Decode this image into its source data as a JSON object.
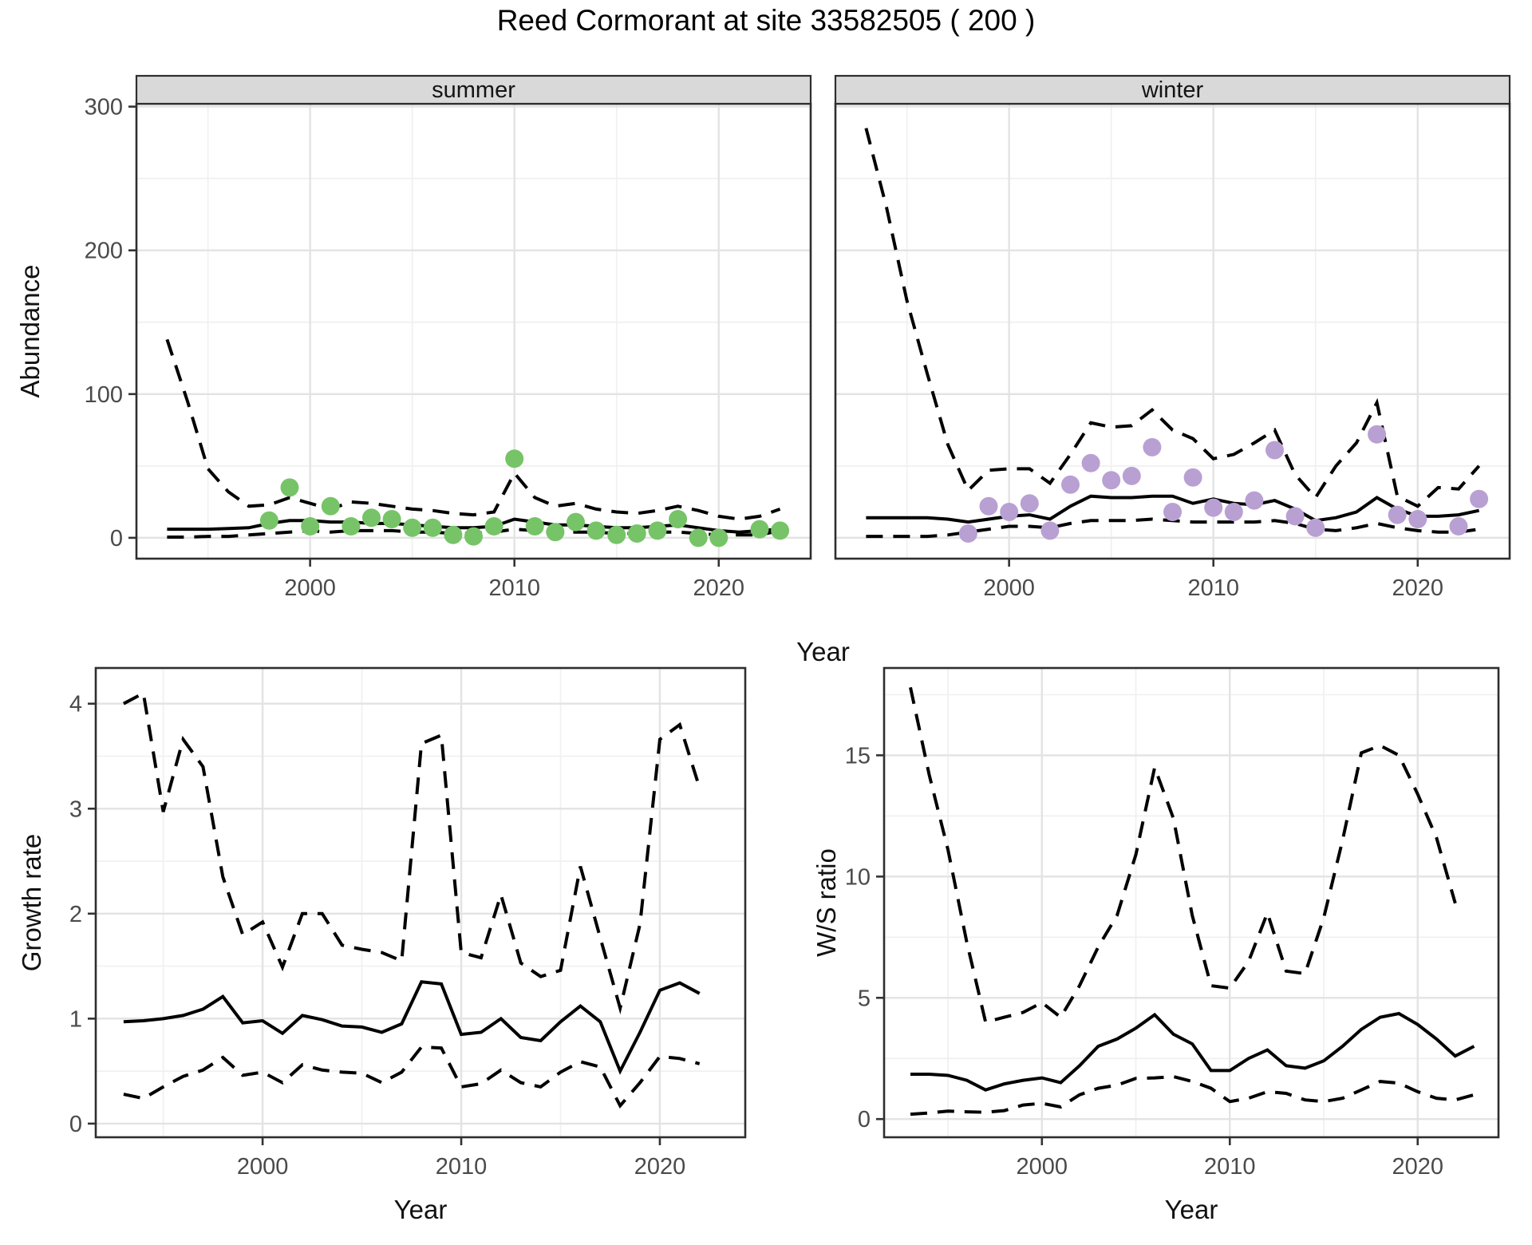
{
  "title": "Reed Cormorant at site 33582505 ( 200 )",
  "colors": {
    "summer_point": "#76c467",
    "winter_point": "#b9a0d3",
    "line": "#000000",
    "strip_bg": "#d9d9d9",
    "strip_text": "#141414",
    "grid_major": "#e3e3e3",
    "grid_minor": "#f0f0f0",
    "panel_border": "#2e2e2e",
    "axis_text": "#4a4a4a"
  },
  "chart_data": [
    {
      "id": "abundance_summer",
      "type": "line",
      "facet_label": "summer",
      "xlabel": "Year",
      "ylabel": "Abundance",
      "xlim": [
        1991.5,
        2024.5
      ],
      "ylim": [
        -14.5,
        302
      ],
      "xticks": [
        2000,
        2010,
        2020
      ],
      "xminor": [
        1995,
        2005,
        2015
      ],
      "yticks": [
        0,
        100,
        200,
        300
      ],
      "yminor": [
        50,
        150,
        250
      ],
      "grid": true,
      "x": [
        1993,
        1994,
        1995,
        1996,
        1997,
        1998,
        1999,
        2000,
        2001,
        2002,
        2003,
        2004,
        2005,
        2006,
        2007,
        2008,
        2009,
        2010,
        2011,
        2012,
        2013,
        2014,
        2015,
        2016,
        2017,
        2018,
        2019,
        2020,
        2021,
        2022,
        2023
      ],
      "series": [
        {
          "name": "upper_ci",
          "style": "dashed",
          "values": [
            138,
            95,
            48,
            32,
            22,
            23,
            28,
            24,
            20,
            25,
            24,
            22,
            20,
            19,
            17,
            16,
            18,
            45,
            28,
            22,
            24,
            20,
            18,
            17,
            19,
            22,
            19,
            15,
            13,
            15,
            20
          ]
        },
        {
          "name": "fit",
          "style": "solid",
          "values": [
            6,
            6,
            6,
            6.5,
            7,
            10,
            12,
            12,
            11,
            11,
            10,
            10,
            9,
            8,
            7,
            7,
            8,
            13,
            11,
            9,
            9,
            8,
            7,
            7,
            8,
            9,
            7,
            5,
            4,
            5,
            6
          ]
        },
        {
          "name": "lower_ci",
          "style": "dashed",
          "values": [
            0.5,
            0.5,
            1,
            1,
            2,
            3,
            4,
            5,
            4,
            5,
            5,
            5,
            4,
            4,
            3,
            3,
            4,
            6,
            5,
            4,
            4,
            4,
            3,
            3,
            4,
            4,
            3,
            2,
            2,
            2,
            5
          ]
        }
      ],
      "points": {
        "name": "summer-observed-point",
        "color": "#76c467",
        "x": [
          1998,
          1999,
          2000,
          2001,
          2002,
          2003,
          2004,
          2005,
          2006,
          2007,
          2008,
          2009,
          2010,
          2011,
          2012,
          2013,
          2014,
          2015,
          2016,
          2017,
          2018,
          2019,
          2020,
          2022,
          2023
        ],
        "y": [
          12,
          35,
          8,
          22,
          8,
          14,
          13,
          7,
          7,
          2,
          1,
          8,
          55,
          8,
          4,
          11,
          5,
          2,
          3,
          5,
          13,
          0,
          0,
          6,
          5
        ]
      }
    },
    {
      "id": "abundance_winter",
      "type": "line",
      "facet_label": "winter",
      "xlabel": "Year",
      "ylabel": "Abundance",
      "xlim": [
        1991.5,
        2024.5
      ],
      "ylim": [
        -14.5,
        302
      ],
      "xticks": [
        2000,
        2010,
        2020
      ],
      "xminor": [
        1995,
        2005,
        2015
      ],
      "yticks": [
        0,
        100,
        200,
        300
      ],
      "yminor": [
        50,
        150,
        250
      ],
      "grid": true,
      "x": [
        1993,
        1994,
        1995,
        1996,
        1997,
        1998,
        1999,
        2000,
        2001,
        2002,
        2003,
        2004,
        2005,
        2006,
        2007,
        2008,
        2009,
        2010,
        2011,
        2012,
        2013,
        2014,
        2015,
        2016,
        2017,
        2018,
        2019,
        2020,
        2021,
        2022,
        2023
      ],
      "series": [
        {
          "name": "upper_ci",
          "style": "dashed",
          "values": [
            285,
            230,
            165,
            114,
            65,
            33,
            47,
            48,
            48,
            38,
            58,
            80,
            77,
            78,
            89,
            75,
            69,
            55,
            58,
            66,
            75,
            44,
            28,
            50,
            66,
            94,
            29,
            22,
            35,
            34,
            50
          ]
        },
        {
          "name": "fit",
          "style": "solid",
          "values": [
            14,
            14,
            14,
            14,
            13,
            11,
            13,
            15,
            16,
            13,
            22,
            29,
            28,
            28,
            29,
            29,
            24,
            27,
            24,
            23,
            26,
            20,
            12,
            14,
            18,
            28,
            20,
            15,
            15,
            16,
            19
          ]
        },
        {
          "name": "lower_ci",
          "style": "dashed",
          "values": [
            1,
            1,
            1,
            1,
            2,
            4,
            6,
            8,
            8,
            7,
            10,
            12,
            12,
            12,
            13,
            12,
            11,
            11,
            11,
            11,
            12,
            10,
            6,
            5,
            7,
            10,
            7,
            5,
            4,
            4,
            6
          ]
        }
      ],
      "points": {
        "name": "winter-observed-point",
        "color": "#b9a0d3",
        "x": [
          1998,
          1999,
          2000,
          2001,
          2002,
          2003,
          2004,
          2005,
          2006,
          2007,
          2008,
          2009,
          2010,
          2011,
          2012,
          2013,
          2014,
          2015,
          2018,
          2019,
          2020,
          2022,
          2023
        ],
        "y": [
          3,
          22,
          18,
          24,
          5,
          37,
          52,
          40,
          43,
          63,
          18,
          42,
          21,
          18,
          26,
          61,
          15,
          7,
          72,
          16,
          13,
          8,
          27
        ]
      }
    },
    {
      "id": "growth_rate",
      "type": "line",
      "facet_label": null,
      "xlabel": "Year",
      "ylabel": "Growth rate",
      "xlim": [
        1991.6,
        2024.3
      ],
      "ylim": [
        -0.13,
        4.34
      ],
      "xticks": [
        2000,
        2010,
        2020
      ],
      "xminor": [
        1995,
        2005,
        2015
      ],
      "yticks": [
        0,
        1,
        2,
        3,
        4
      ],
      "yminor": [
        0.5,
        1.5,
        2.5,
        3.5
      ],
      "grid": true,
      "x": [
        1993,
        1994,
        1995,
        1996,
        1997,
        1998,
        1999,
        2000,
        2001,
        2002,
        2003,
        2004,
        2005,
        2006,
        2007,
        2008,
        2009,
        2010,
        2011,
        2012,
        2013,
        2014,
        2015,
        2016,
        2017,
        2018,
        2019,
        2020,
        2021,
        2022
      ],
      "series": [
        {
          "name": "upper_ci",
          "style": "dashed",
          "values": [
            4.0,
            4.1,
            2.97,
            3.66,
            3.4,
            2.35,
            1.8,
            1.92,
            1.49,
            2.0,
            2.0,
            1.7,
            1.66,
            1.63,
            1.55,
            3.62,
            3.7,
            1.63,
            1.58,
            2.18,
            1.53,
            1.4,
            1.46,
            2.45,
            1.77,
            1.1,
            1.9,
            3.66,
            3.8,
            3.2
          ]
        },
        {
          "name": "fit",
          "style": "solid",
          "values": [
            0.97,
            0.98,
            1.0,
            1.03,
            1.09,
            1.21,
            0.96,
            0.98,
            0.86,
            1.03,
            0.99,
            0.93,
            0.92,
            0.87,
            0.95,
            1.35,
            1.33,
            0.85,
            0.87,
            1.0,
            0.82,
            0.79,
            0.97,
            1.12,
            0.97,
            0.5,
            0.87,
            1.27,
            1.34,
            1.24
          ]
        },
        {
          "name": "lower_ci",
          "style": "dashed",
          "values": [
            0.28,
            0.24,
            0.35,
            0.45,
            0.51,
            0.63,
            0.46,
            0.49,
            0.39,
            0.56,
            0.51,
            0.49,
            0.48,
            0.39,
            0.49,
            0.73,
            0.72,
            0.35,
            0.38,
            0.51,
            0.39,
            0.35,
            0.49,
            0.59,
            0.54,
            0.17,
            0.39,
            0.64,
            0.62,
            0.57
          ]
        }
      ],
      "points": null
    },
    {
      "id": "ws_ratio",
      "type": "line",
      "facet_label": null,
      "xlabel": "Year",
      "ylabel": "W/S ratio",
      "xlim": [
        1991.6,
        2024.3
      ],
      "ylim": [
        -0.75,
        18.6
      ],
      "xticks": [
        2000,
        2010,
        2020
      ],
      "xminor": [
        1995,
        2005,
        2015
      ],
      "yticks": [
        0,
        5,
        10,
        15
      ],
      "yminor": [
        2.5,
        7.5,
        12.5,
        17.5
      ],
      "grid": true,
      "x": [
        1993,
        1994,
        1995,
        1996,
        1997,
        1998,
        1999,
        2000,
        2001,
        2002,
        2003,
        2004,
        2005,
        2006,
        2007,
        2008,
        2009,
        2010,
        2011,
        2012,
        2013,
        2014,
        2015,
        2016,
        2017,
        2018,
        2019,
        2020,
        2021,
        2022,
        2023
      ],
      "series": [
        {
          "name": "upper_ci",
          "style": "dashed",
          "values": [
            17.8,
            14.2,
            11.1,
            7.3,
            4.0,
            4.2,
            4.4,
            4.8,
            4.2,
            5.5,
            7.1,
            8.4,
            10.9,
            14.5,
            12.4,
            8.4,
            5.5,
            5.4,
            6.5,
            8.5,
            6.1,
            6.0,
            8.3,
            11.5,
            15.1,
            15.4,
            15.0,
            13.4,
            11.6,
            8.9,
            null
          ]
        },
        {
          "name": "fit",
          "style": "solid",
          "values": [
            1.85,
            1.85,
            1.8,
            1.6,
            1.2,
            1.45,
            1.6,
            1.7,
            1.5,
            2.2,
            3.0,
            3.3,
            3.75,
            4.3,
            3.5,
            3.1,
            2.0,
            2.0,
            2.5,
            2.85,
            2.2,
            2.1,
            2.4,
            3.0,
            3.7,
            4.2,
            4.35,
            3.9,
            3.3,
            2.6,
            3.0
          ]
        },
        {
          "name": "lower_ci",
          "style": "dashed",
          "values": [
            0.2,
            0.25,
            0.33,
            0.3,
            0.28,
            0.35,
            0.58,
            0.65,
            0.5,
            1.0,
            1.27,
            1.4,
            1.68,
            1.7,
            1.75,
            1.55,
            1.27,
            0.72,
            0.86,
            1.13,
            1.06,
            0.79,
            0.72,
            0.86,
            1.2,
            1.55,
            1.48,
            1.13,
            0.86,
            0.79,
            1.0
          ]
        }
      ],
      "points": null
    }
  ]
}
